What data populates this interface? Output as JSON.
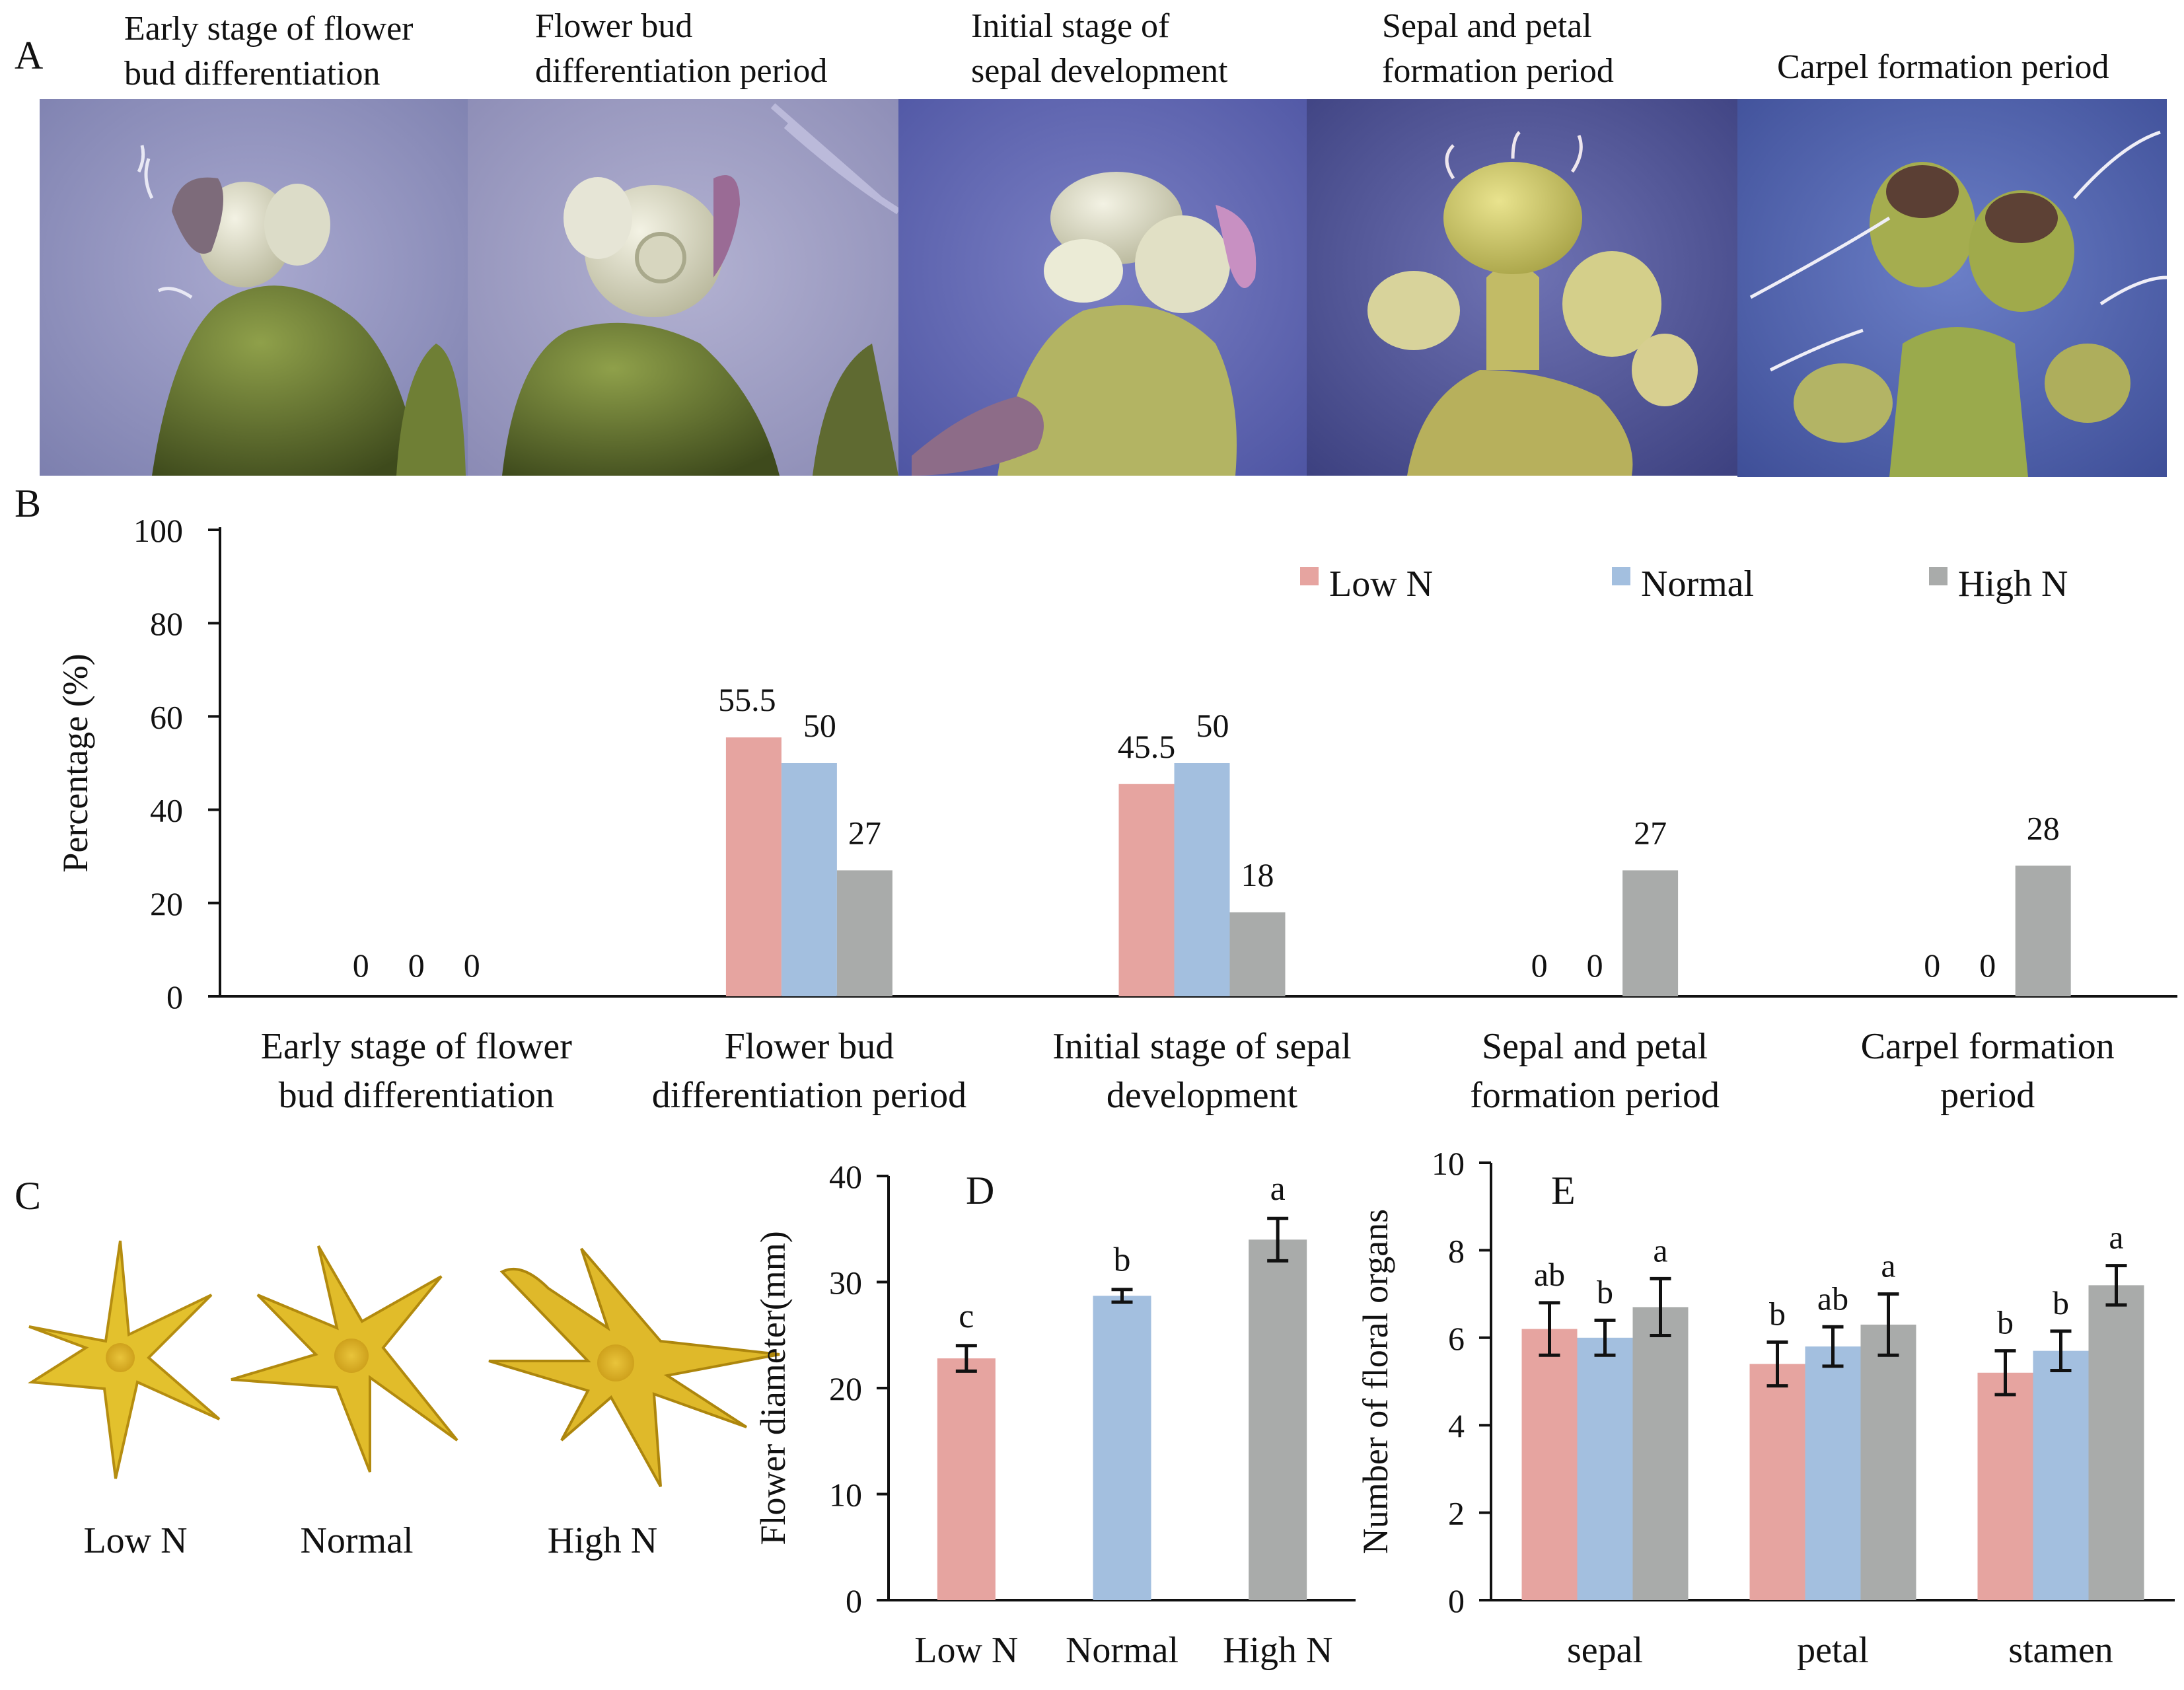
{
  "figure": {
    "panel_letters": {
      "a": "A",
      "b": "B",
      "c": "C",
      "d": "D",
      "e": "E"
    },
    "panel_a": {
      "captions": [
        [
          "Early stage of flower",
          "bud differentiation"
        ],
        [
          "Flower bud",
          "differentiation period"
        ],
        [
          "Initial stage of",
          "sepal development"
        ],
        [
          "Sepal and petal",
          "formation period"
        ],
        [
          "Carpel formation period"
        ]
      ]
    },
    "panel_c": {
      "labels": [
        "Low N",
        "Normal",
        "High N"
      ]
    }
  },
  "colors": {
    "low_n": "#e6a4a0",
    "normal": "#a3bfdf",
    "high_n": "#a9abaa",
    "axis": "#111111"
  },
  "chart_data": [
    {
      "id": "B",
      "type": "bar",
      "ylabel": "Percentage (%)",
      "ylim": [
        0,
        100
      ],
      "yticks": [
        0,
        20,
        40,
        60,
        80,
        100
      ],
      "categories": [
        "Early stage of flower bud differentiation",
        "Flower bud differentiation period",
        "Initial stage of sepal development",
        "Sepal and petal formation period",
        "Carpel formation period"
      ],
      "category_lines": [
        [
          "Early stage of flower",
          "bud differentiation"
        ],
        [
          "Flower bud",
          "differentiation period"
        ],
        [
          "Initial stage of sepal",
          "development"
        ],
        [
          "Sepal and petal",
          "formation period"
        ],
        [
          "Carpel formation",
          "period"
        ]
      ],
      "series": [
        {
          "name": "Low N",
          "color": "#e6a4a0",
          "values": [
            0,
            55.5,
            45.5,
            0,
            0
          ],
          "labels": [
            "0",
            "55.5",
            "45.5",
            "0",
            "0"
          ]
        },
        {
          "name": "Normal",
          "color": "#a3bfdf",
          "values": [
            0,
            50,
            50,
            0,
            0
          ],
          "labels": [
            "0",
            "50",
            "50",
            "0",
            "0"
          ]
        },
        {
          "name": "High N",
          "color": "#a9abaa",
          "values": [
            0,
            27,
            18,
            27,
            28
          ],
          "labels": [
            "0",
            "27",
            "18",
            "27",
            "28"
          ]
        }
      ],
      "legend": "top-right",
      "grid": false
    },
    {
      "id": "D",
      "type": "bar",
      "ylabel": "Flower diameter(mm)",
      "ylim": [
        0,
        40
      ],
      "yticks": [
        0,
        10,
        20,
        30,
        40
      ],
      "categories": [
        "Low N",
        "Normal",
        "High N"
      ],
      "values": [
        22.8,
        28.7,
        34.0
      ],
      "errors": [
        1.2,
        0.6,
        2.0
      ],
      "significance": [
        "c",
        "b",
        "a"
      ],
      "colors": [
        "#e6a4a0",
        "#a3bfdf",
        "#a9abaa"
      ],
      "grid": false
    },
    {
      "id": "E",
      "type": "bar",
      "ylabel": "Number of floral organs",
      "ylim": [
        0,
        10
      ],
      "yticks": [
        0,
        2,
        4,
        6,
        8,
        10
      ],
      "categories": [
        "sepal",
        "petal",
        "stamen"
      ],
      "series": [
        {
          "name": "Low N",
          "color": "#e6a4a0",
          "values": [
            6.2,
            5.4,
            5.2
          ],
          "errors": [
            0.6,
            0.5,
            0.5
          ],
          "significance": [
            "ab",
            "b",
            "b"
          ]
        },
        {
          "name": "Normal",
          "color": "#a3bfdf",
          "values": [
            6.0,
            5.8,
            5.7
          ],
          "errors": [
            0.4,
            0.45,
            0.45
          ],
          "significance": [
            "b",
            "ab",
            "b"
          ]
        },
        {
          "name": "High N",
          "color": "#a9abaa",
          "values": [
            6.7,
            6.3,
            7.2
          ],
          "errors": [
            0.65,
            0.7,
            0.45
          ],
          "significance": [
            "a",
            "a",
            "a"
          ]
        }
      ],
      "grid": false
    }
  ]
}
